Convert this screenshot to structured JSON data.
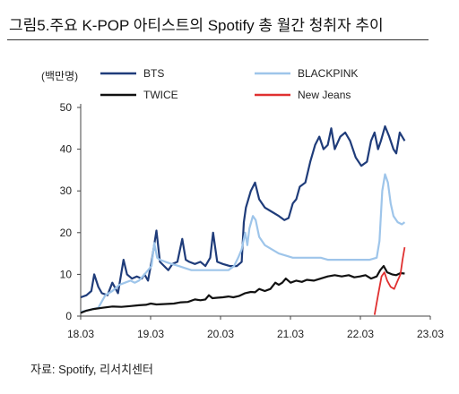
{
  "title": "그림5.주요 K-POP 아티스트의 Spotify 총 월간 청취자 추이",
  "source": "자료: Spotify, 리서치센터",
  "chart_data": {
    "type": "line",
    "unit_label": "(백만명)",
    "ylim": [
      0,
      50
    ],
    "yticks": [
      "0",
      "10",
      "20",
      "30",
      "40",
      "50"
    ],
    "xlim": [
      2018.167,
      2023.167
    ],
    "xticks": [
      {
        "label": "18.03",
        "value": 2018.167
      },
      {
        "label": "19.03",
        "value": 2019.167
      },
      {
        "label": "20.03",
        "value": 2020.167
      },
      {
        "label": "21.03",
        "value": 2021.167
      },
      {
        "label": "22.03",
        "value": 2022.167
      },
      {
        "label": "23.03",
        "value": 2023.167
      }
    ],
    "grid": false,
    "legend": "top",
    "series": [
      {
        "name": "BTS",
        "color": "#1f3c7a",
        "points": [
          [
            2018.17,
            4.5
          ],
          [
            2018.25,
            5.0
          ],
          [
            2018.32,
            6.0
          ],
          [
            2018.36,
            10.0
          ],
          [
            2018.42,
            7.0
          ],
          [
            2018.47,
            5.5
          ],
          [
            2018.55,
            5.0
          ],
          [
            2018.62,
            8.0
          ],
          [
            2018.7,
            5.5
          ],
          [
            2018.78,
            13.5
          ],
          [
            2018.83,
            10.0
          ],
          [
            2018.9,
            9.0
          ],
          [
            2018.97,
            9.5
          ],
          [
            2019.04,
            9.0
          ],
          [
            2019.08,
            10.0
          ],
          [
            2019.13,
            8.5
          ],
          [
            2019.19,
            14.0
          ],
          [
            2019.25,
            20.5
          ],
          [
            2019.3,
            13.0
          ],
          [
            2019.36,
            12.0
          ],
          [
            2019.42,
            11.0
          ],
          [
            2019.48,
            12.5
          ],
          [
            2019.55,
            13.0
          ],
          [
            2019.62,
            18.5
          ],
          [
            2019.67,
            13.5
          ],
          [
            2019.72,
            13.0
          ],
          [
            2019.8,
            12.5
          ],
          [
            2019.88,
            13.0
          ],
          [
            2019.95,
            12.0
          ],
          [
            2020.02,
            14.0
          ],
          [
            2020.06,
            20.0
          ],
          [
            2020.12,
            13.0
          ],
          [
            2020.2,
            12.5
          ],
          [
            2020.3,
            12.0
          ],
          [
            2020.4,
            12.0
          ],
          [
            2020.47,
            13.0
          ],
          [
            2020.5,
            22.5
          ],
          [
            2020.53,
            26.0
          ],
          [
            2020.6,
            30.0
          ],
          [
            2020.66,
            32.0
          ],
          [
            2020.72,
            28.0
          ],
          [
            2020.8,
            26.0
          ],
          [
            2020.9,
            25.0
          ],
          [
            2021.0,
            24.0
          ],
          [
            2021.08,
            23.0
          ],
          [
            2021.14,
            23.5
          ],
          [
            2021.2,
            27.0
          ],
          [
            2021.25,
            28.0
          ],
          [
            2021.3,
            31.0
          ],
          [
            2021.38,
            32.0
          ],
          [
            2021.45,
            37.0
          ],
          [
            2021.52,
            41.0
          ],
          [
            2021.58,
            43.0
          ],
          [
            2021.64,
            40.0
          ],
          [
            2021.7,
            41.0
          ],
          [
            2021.75,
            45.0
          ],
          [
            2021.8,
            40.0
          ],
          [
            2021.88,
            43.0
          ],
          [
            2021.95,
            44.0
          ],
          [
            2022.02,
            42.0
          ],
          [
            2022.1,
            38.0
          ],
          [
            2022.18,
            36.0
          ],
          [
            2022.26,
            37.0
          ],
          [
            2022.32,
            42.0
          ],
          [
            2022.37,
            44.0
          ],
          [
            2022.42,
            40.0
          ],
          [
            2022.46,
            42.0
          ],
          [
            2022.52,
            45.5
          ],
          [
            2022.58,
            43.0
          ],
          [
            2022.64,
            40.0
          ],
          [
            2022.68,
            39.0
          ],
          [
            2022.73,
            44.0
          ],
          [
            2022.8,
            42.0
          ]
        ]
      },
      {
        "name": "BLACKPINK",
        "color": "#9ec5ea",
        "points": [
          [
            2018.17,
            1.0
          ],
          [
            2018.3,
            1.5
          ],
          [
            2018.42,
            2.0
          ],
          [
            2018.52,
            5.0
          ],
          [
            2018.62,
            6.0
          ],
          [
            2018.72,
            7.5
          ],
          [
            2018.8,
            8.0
          ],
          [
            2018.88,
            8.5
          ],
          [
            2018.94,
            8.0
          ],
          [
            2019.0,
            8.5
          ],
          [
            2019.08,
            10.0
          ],
          [
            2019.18,
            12.0
          ],
          [
            2019.22,
            17.5
          ],
          [
            2019.26,
            14.0
          ],
          [
            2019.3,
            13.5
          ],
          [
            2019.38,
            13.0
          ],
          [
            2019.47,
            12.5
          ],
          [
            2019.57,
            12.0
          ],
          [
            2019.66,
            11.5
          ],
          [
            2019.75,
            11.0
          ],
          [
            2019.85,
            11.0
          ],
          [
            2019.95,
            11.0
          ],
          [
            2020.05,
            11.0
          ],
          [
            2020.17,
            11.0
          ],
          [
            2020.28,
            11.0
          ],
          [
            2020.36,
            12.0
          ],
          [
            2020.42,
            14.0
          ],
          [
            2020.47,
            16.0
          ],
          [
            2020.52,
            20.0
          ],
          [
            2020.55,
            17.0
          ],
          [
            2020.58,
            21.0
          ],
          [
            2020.63,
            24.0
          ],
          [
            2020.67,
            23.0
          ],
          [
            2020.72,
            19.0
          ],
          [
            2020.8,
            17.0
          ],
          [
            2020.9,
            16.0
          ],
          [
            2021.0,
            15.0
          ],
          [
            2021.1,
            14.5
          ],
          [
            2021.2,
            14.0
          ],
          [
            2021.3,
            14.0
          ],
          [
            2021.4,
            14.0
          ],
          [
            2021.5,
            14.0
          ],
          [
            2021.6,
            14.0
          ],
          [
            2021.7,
            13.5
          ],
          [
            2021.8,
            13.5
          ],
          [
            2021.9,
            13.5
          ],
          [
            2022.0,
            13.5
          ],
          [
            2022.1,
            13.5
          ],
          [
            2022.2,
            13.5
          ],
          [
            2022.3,
            13.5
          ],
          [
            2022.4,
            14.0
          ],
          [
            2022.44,
            18.0
          ],
          [
            2022.48,
            30.0
          ],
          [
            2022.52,
            34.0
          ],
          [
            2022.56,
            32.0
          ],
          [
            2022.6,
            27.0
          ],
          [
            2022.64,
            24.0
          ],
          [
            2022.7,
            22.5
          ],
          [
            2022.76,
            22.0
          ],
          [
            2022.8,
            22.5
          ]
        ]
      },
      {
        "name": "TWICE",
        "color": "#111111",
        "points": [
          [
            2018.17,
            0.8
          ],
          [
            2018.25,
            1.3
          ],
          [
            2018.35,
            1.7
          ],
          [
            2018.48,
            2.0
          ],
          [
            2018.62,
            2.3
          ],
          [
            2018.75,
            2.2
          ],
          [
            2018.88,
            2.4
          ],
          [
            2019.0,
            2.6
          ],
          [
            2019.1,
            2.7
          ],
          [
            2019.17,
            3.0
          ],
          [
            2019.25,
            2.8
          ],
          [
            2019.38,
            2.9
          ],
          [
            2019.5,
            3.0
          ],
          [
            2019.6,
            3.3
          ],
          [
            2019.7,
            3.4
          ],
          [
            2019.8,
            4.0
          ],
          [
            2019.88,
            3.8
          ],
          [
            2019.95,
            4.0
          ],
          [
            2020.0,
            5.0
          ],
          [
            2020.05,
            4.3
          ],
          [
            2020.12,
            4.4
          ],
          [
            2020.2,
            4.5
          ],
          [
            2020.28,
            4.7
          ],
          [
            2020.35,
            4.5
          ],
          [
            2020.43,
            4.8
          ],
          [
            2020.52,
            5.5
          ],
          [
            2020.6,
            5.8
          ],
          [
            2020.66,
            5.7
          ],
          [
            2020.72,
            6.5
          ],
          [
            2020.8,
            6.0
          ],
          [
            2020.88,
            6.5
          ],
          [
            2020.95,
            8.0
          ],
          [
            2021.0,
            7.5
          ],
          [
            2021.05,
            8.0
          ],
          [
            2021.1,
            9.0
          ],
          [
            2021.17,
            8.0
          ],
          [
            2021.25,
            8.5
          ],
          [
            2021.33,
            8.2
          ],
          [
            2021.4,
            8.7
          ],
          [
            2021.5,
            8.5
          ],
          [
            2021.6,
            9.0
          ],
          [
            2021.7,
            9.5
          ],
          [
            2021.8,
            9.8
          ],
          [
            2021.9,
            9.5
          ],
          [
            2022.0,
            9.8
          ],
          [
            2022.08,
            9.3
          ],
          [
            2022.16,
            9.5
          ],
          [
            2022.24,
            9.8
          ],
          [
            2022.32,
            9.0
          ],
          [
            2022.4,
            9.5
          ],
          [
            2022.45,
            11.0
          ],
          [
            2022.5,
            12.0
          ],
          [
            2022.55,
            10.5
          ],
          [
            2022.62,
            10.0
          ],
          [
            2022.68,
            9.8
          ],
          [
            2022.74,
            10.3
          ],
          [
            2022.8,
            10.2
          ]
        ]
      },
      {
        "name": "New Jeans",
        "color": "#e03030",
        "points": [
          [
            2022.37,
            0.3
          ],
          [
            2022.42,
            5.0
          ],
          [
            2022.47,
            9.5
          ],
          [
            2022.51,
            10.5
          ],
          [
            2022.55,
            8.5
          ],
          [
            2022.6,
            7.0
          ],
          [
            2022.65,
            6.5
          ],
          [
            2022.7,
            8.5
          ],
          [
            2022.74,
            10.0
          ],
          [
            2022.77,
            13.5
          ],
          [
            2022.8,
            16.5
          ]
        ]
      }
    ]
  }
}
